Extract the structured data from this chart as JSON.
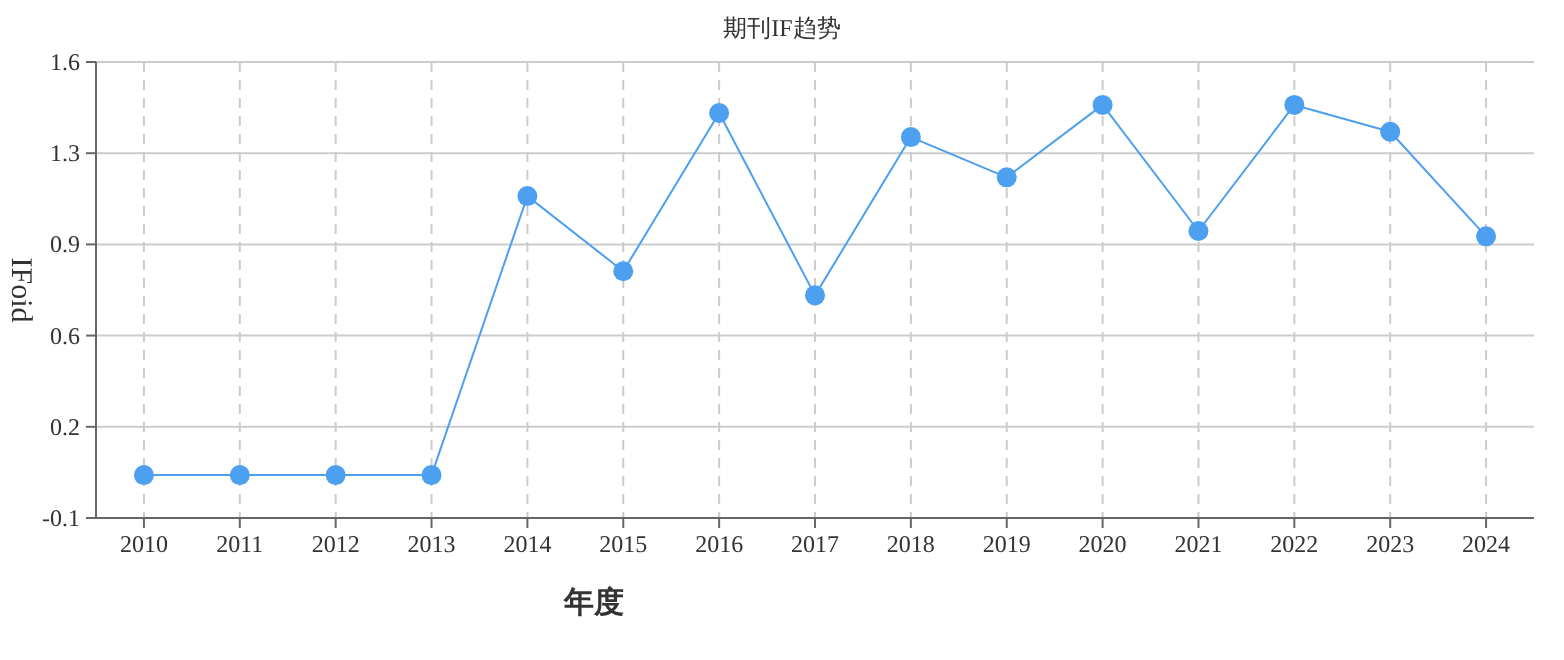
{
  "chart_data": {
    "type": "line",
    "title": "期刊IF趋势",
    "xlabel": "年度",
    "ylabel": "IFoid",
    "categories": [
      "2010",
      "2011",
      "2012",
      "2013",
      "2014",
      "2015",
      "2016",
      "2017",
      "2018",
      "2019",
      "2020",
      "2021",
      "2022",
      "2023",
      "2024"
    ],
    "series": [
      {
        "color": "#4d9ff0",
        "values": [
          0.06,
          0.06,
          0.06,
          0.06,
          1.1,
          0.82,
          1.41,
          0.73,
          1.32,
          1.17,
          1.44,
          0.97,
          1.44,
          1.34,
          0.95
        ]
      }
    ],
    "ylim": [
      -0.1,
      1.6
    ],
    "yticks": [
      -0.1,
      {
        "value": 0.24,
        "label": "0.2"
      },
      {
        "value": 0.58,
        "label": "0.6"
      },
      {
        "value": 0.92,
        "label": "0.9"
      },
      {
        "value": 1.26,
        "label": "1.3"
      },
      1.6
    ],
    "grid": true,
    "marker": "circle",
    "line_style": "solid"
  }
}
